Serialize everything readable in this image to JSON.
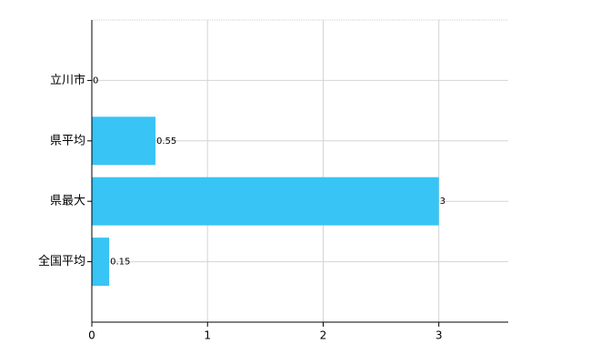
{
  "chart_data": {
    "type": "bar",
    "orientation": "horizontal",
    "categories": [
      "立川市",
      "県平均",
      "県最大",
      "全国平均"
    ],
    "values": [
      0,
      0.55,
      3,
      0.15
    ],
    "color": "#38c4f4",
    "xlim": [
      0,
      3.6
    ],
    "xticks": [
      0,
      1,
      2,
      3
    ],
    "grid": true
  }
}
